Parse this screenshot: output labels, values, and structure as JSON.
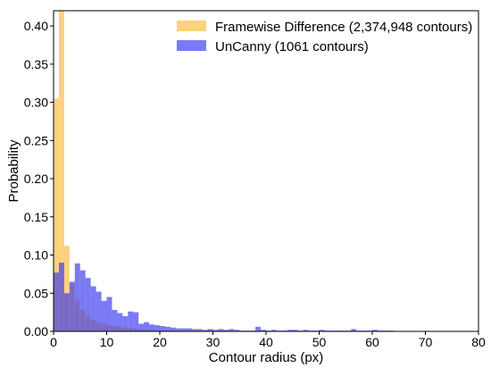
{
  "chart_data": {
    "type": "bar",
    "xlabel": "Contour radius (px)",
    "ylabel": "Probability",
    "xlim": [
      0,
      80
    ],
    "ylim": [
      0,
      0.42
    ],
    "xticks": [
      0,
      10,
      20,
      30,
      40,
      50,
      60,
      70,
      80
    ],
    "yticks": [
      0.0,
      0.05,
      0.1,
      0.15,
      0.2,
      0.25,
      0.3,
      0.35,
      0.4
    ],
    "grid": false,
    "legend_position": "top-right",
    "series": [
      {
        "name": "Framewise Difference (2,374,948 contours)",
        "color": "#fbb93a",
        "opacity": 0.65,
        "bin_width": 1,
        "bin_edges": [
          0,
          1,
          2,
          3,
          4,
          5,
          6,
          7,
          8,
          9,
          10,
          11,
          12,
          13,
          14,
          15,
          16,
          17,
          18,
          19,
          20,
          21,
          22,
          23,
          24,
          25
        ],
        "values": [
          0.305,
          0.42,
          0.112,
          0.062,
          0.04,
          0.028,
          0.02,
          0.015,
          0.012,
          0.01,
          0.008,
          0.007,
          0.006,
          0.005,
          0.004,
          0.0035,
          0.003,
          0.0025,
          0.002,
          0.0015,
          0.0012,
          0.001,
          0.0008,
          0.0006,
          0.0005
        ]
      },
      {
        "name": "UnCanny (1061 contours)",
        "color": "#3333ee",
        "opacity": 0.65,
        "bin_width": 1,
        "bin_edges": [
          0,
          1,
          2,
          3,
          4,
          5,
          6,
          7,
          8,
          9,
          10,
          11,
          12,
          13,
          14,
          15,
          16,
          17,
          18,
          19,
          20,
          21,
          22,
          23,
          24,
          25,
          26,
          27,
          28,
          29,
          30,
          31,
          32,
          33,
          34,
          35,
          36,
          37,
          38,
          39,
          40,
          41,
          42,
          43,
          44,
          45,
          46,
          47,
          48,
          49,
          50,
          51,
          52,
          53,
          54,
          55,
          56,
          57,
          58,
          59,
          60,
          61,
          62,
          63,
          64
        ],
        "values": [
          0.077,
          0.09,
          0.05,
          0.065,
          0.089,
          0.08,
          0.07,
          0.059,
          0.052,
          0.04,
          0.045,
          0.028,
          0.024,
          0.02,
          0.026,
          0.025,
          0.01,
          0.012,
          0.009,
          0.008,
          0.007,
          0.006,
          0.005,
          0.004,
          0.004,
          0.004,
          0.003,
          0.003,
          0.002,
          0.003,
          0.002,
          0.003,
          0.002,
          0.003,
          0.002,
          0.001,
          0.001,
          0.001,
          0.006,
          0.002,
          0.001,
          0.002,
          0.001,
          0.001,
          0.002,
          0.002,
          0.001,
          0.002,
          0.001,
          0.001,
          0.002,
          0.001,
          0.001,
          0.001,
          0.001,
          0.001,
          0.003,
          0.001,
          0.001,
          0.001,
          0.002,
          0.001,
          0.001,
          0.001
        ]
      }
    ]
  }
}
